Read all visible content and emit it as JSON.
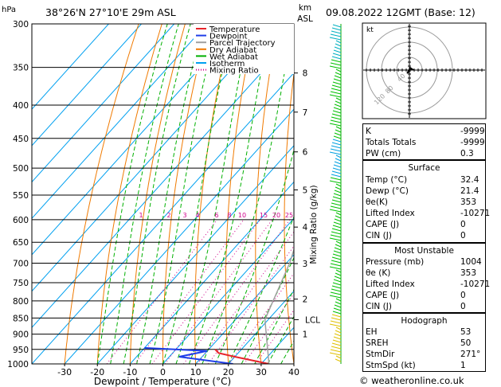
{
  "header": {
    "location": "38°26'N  27°10'E  29m  ASL",
    "datetime": "09.08.2022  12GMT  (Base: 12)",
    "hpa_unit": "hPa",
    "km_unit": "km",
    "asl_unit": "ASL"
  },
  "chart_data": {
    "type": "line",
    "title": "38°26'N  27°10'E  29m  ASL",
    "xlabel": "Dewpoint / Temperature (°C)",
    "ylabel_right": "Mixing Ratio (g/kg)",
    "xlim": [
      -40,
      40
    ],
    "x_ticks": [
      -30,
      -20,
      -10,
      0,
      10,
      20,
      30,
      40
    ],
    "y_scale": "log-pressure",
    "ylim": [
      1000,
      300
    ],
    "pressure_levels": [
      300,
      350,
      400,
      450,
      500,
      550,
      600,
      650,
      700,
      750,
      800,
      850,
      900,
      950,
      1000
    ],
    "km_ticks": [
      {
        "label": "8",
        "p": 357
      },
      {
        "label": "7",
        "p": 410
      },
      {
        "label": "6",
        "p": 472
      },
      {
        "label": "5",
        "p": 540
      },
      {
        "label": "4",
        "p": 616
      },
      {
        "label": "3",
        "p": 701
      },
      {
        "label": "2",
        "p": 795
      },
      {
        "label": "1",
        "p": 900
      }
    ],
    "lcl": {
      "label": "LCL",
      "p": 855
    },
    "mixing_ratio_labels": [
      "1",
      "2",
      "3",
      "4",
      "6",
      "8",
      "10",
      "15",
      "20",
      "25"
    ],
    "legend": {
      "placement": "top",
      "entries": [
        {
          "name": "Temperature",
          "color": "#e8242a",
          "style": "solid"
        },
        {
          "name": "Dewpoint",
          "color": "#1f3ee8",
          "style": "solid"
        },
        {
          "name": "Parcel Trajectory",
          "color": "#a0a0a0",
          "style": "solid"
        },
        {
          "name": "Dry Adiabat",
          "color": "#f07a00",
          "style": "solid"
        },
        {
          "name": "Wet Adiabat",
          "color": "#00b000",
          "style": "solid"
        },
        {
          "name": "Isotherm",
          "color": "#00a0f0",
          "style": "solid"
        },
        {
          "name": "Mixing Ratio",
          "color": "#d0008a",
          "style": "dotted"
        }
      ]
    },
    "series": [
      {
        "name": "Temperature",
        "points": [
          {
            "p": 1000,
            "t": 32.4
          },
          {
            "p": 975,
            "t": 20
          },
          {
            "p": 962,
            "t": 14
          },
          {
            "p": 950,
            "t": 12
          }
        ]
      },
      {
        "name": "Dewpoint",
        "points": [
          {
            "p": 1000,
            "t": 21.4
          },
          {
            "p": 975,
            "t": 3
          },
          {
            "p": 955,
            "t": 10
          },
          {
            "p": 945,
            "t": -10
          }
        ]
      },
      {
        "name": "Parcel Trajectory",
        "points": [
          {
            "p": 1000,
            "t": 32.4
          },
          {
            "p": 855,
            "t": 19
          },
          {
            "p": 700,
            "t": 11
          },
          {
            "p": 550,
            "t": -1
          },
          {
            "p": 450,
            "t": -13
          },
          {
            "p": 400,
            "t": -21
          },
          {
            "p": 350,
            "t": -31
          }
        ]
      }
    ],
    "hodograph": {
      "label": "kt",
      "ring_labels": [
        "40",
        "80",
        "120"
      ]
    },
    "colors": {
      "temperature": "#e8242a",
      "dewpoint": "#1f3ee8",
      "parcel": "#a0a0a0",
      "dry_adiabat": "#f07a00",
      "wet_adiabat": "#00b000",
      "isotherm": "#00a0f0",
      "mixing_ratio": "#d0008a"
    }
  },
  "indices": {
    "rows": [
      {
        "key": "K",
        "value": "-9999"
      },
      {
        "key": "Totals Totals",
        "value": "-9999"
      },
      {
        "key": "PW (cm)",
        "value": "0.3"
      }
    ]
  },
  "surface": {
    "title": "Surface",
    "rows": [
      {
        "key": "Temp (°C)",
        "value": "32.4"
      },
      {
        "key": "Dewp (°C)",
        "value": "21.4"
      },
      {
        "key": "θe(K)",
        "value": "353"
      },
      {
        "key": "Lifted Index",
        "value": "-10271"
      },
      {
        "key": "CAPE (J)",
        "value": "0"
      },
      {
        "key": "CIN (J)",
        "value": "0"
      }
    ]
  },
  "most_unstable": {
    "title": "Most Unstable",
    "rows": [
      {
        "key": "Pressure (mb)",
        "value": "1004"
      },
      {
        "key": "θe (K)",
        "value": "353"
      },
      {
        "key": "Lifted Index",
        "value": "-10271"
      },
      {
        "key": "CAPE (J)",
        "value": "0"
      },
      {
        "key": "CIN (J)",
        "value": "0"
      }
    ]
  },
  "hodograph_table": {
    "title": "Hodograph",
    "rows": [
      {
        "key": "EH",
        "value": "53"
      },
      {
        "key": "SREH",
        "value": "50"
      },
      {
        "key": "StmDir",
        "value": "271°"
      },
      {
        "key": "StmSpd (kt)",
        "value": "1"
      }
    ]
  },
  "footer": {
    "copyright": "© weatheronline.co.uk"
  }
}
